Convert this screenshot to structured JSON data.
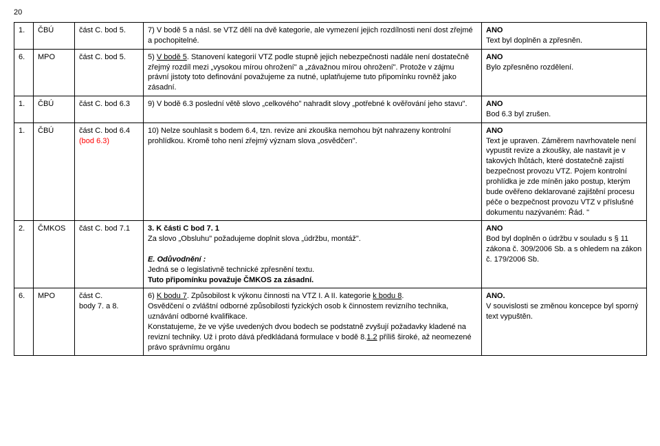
{
  "page_number": "20",
  "rows": [
    {
      "c1": "1.",
      "c2": "ČBÚ",
      "c3_parts": [
        {
          "text": "část C. bod 5."
        }
      ],
      "c4_parts": [
        {
          "text": "7) V bodě 5 a násl. se VTZ dělí na dvě kategorie, ale vymezení jejich rozdílnosti není dost zřejmé a pochopitelné."
        }
      ],
      "c5_parts": [
        {
          "text": "ANO",
          "bold": true
        },
        {
          "br": true
        },
        {
          "text": "Text byl doplněn a zpřesněn."
        }
      ]
    },
    {
      "c1": "6.",
      "c2": "MPO",
      "c3_parts": [
        {
          "text": "část C. bod 5."
        }
      ],
      "c4_parts": [
        {
          "text": "5) "
        },
        {
          "text": "V bodě 5",
          "underline": true
        },
        {
          "text": ". Stanovení kategorií VTZ podle stupně jejich nebezpečnosti nadále není dostatečně zřejmý rozdíl mezi „vysokou mírou ohrožení\" a „závažnou mírou ohrožení\". Protože v zájmu právní jistoty toto definování považujeme za nutné, uplatňujeme tuto připomínku rovněž jako zásadní."
        }
      ],
      "c5_parts": [
        {
          "text": "ANO",
          "bold": true
        },
        {
          "br": true
        },
        {
          "text": "Bylo zpřesněno rozdělení."
        }
      ]
    },
    {
      "c1": "1.",
      "c2": "ČBÚ",
      "c3_parts": [
        {
          "text": "část C. bod 6.3"
        }
      ],
      "c4_parts": [
        {
          "text": "9) V bodě 6.3 poslední větě slovo „celkového\" nahradit slovy „potřebné k ověřování jeho stavu\"."
        }
      ],
      "c5_parts": [
        {
          "text": "ANO",
          "bold": true
        },
        {
          "br": true
        },
        {
          "text": "Bod 6.3 byl zrušen."
        }
      ]
    },
    {
      "c1": "1.",
      "c2": "ČBÚ",
      "c3_parts": [
        {
          "text": "část C. bod 6.4 "
        },
        {
          "text": "(bod 6.3)",
          "red": true
        }
      ],
      "c4_parts": [
        {
          "text": "10) Nelze souhlasit s bodem 6.4, tzn. revize ani zkouška nemohou být nahrazeny kontrolní prohlídkou. Kromě toho není zřejmý význam slova „osvědčen\"."
        }
      ],
      "c5_parts": [
        {
          "text": "ANO",
          "bold": true
        },
        {
          "br": true
        },
        {
          "text": "Text je upraven. Záměrem navrhovatele není vypustit revize a zkoušky, ale nastavit je v takových lhůtách, které dostatečně zajistí bezpečnost provozu VTZ. Pojem kontrolní prohlídka je zde míněn jako postup, kterým bude ověřeno deklarované zajištění procesu péče o bezpečnost provozu VTZ v příslušné dokumentu nazývaném: Řád. \""
        }
      ]
    },
    {
      "c1": "2.",
      "c2": "ČMKOS",
      "c3_parts": [
        {
          "text": "část C. bod 7.1"
        }
      ],
      "c4_parts": [
        {
          "text": "3. K části C bod 7. 1",
          "bold": true
        },
        {
          "br": true
        },
        {
          "text": "Za slovo „Obsluhu\" požadujeme doplnit slova „údržbu, montáž\"."
        },
        {
          "br": true
        },
        {
          "br": true
        },
        {
          "text": "E. Odůvodnění :",
          "bold": true,
          "italic": true
        },
        {
          "br": true
        },
        {
          "text": "Jedná se o legislativně technické zpřesnění textu."
        },
        {
          "br": true
        },
        {
          "text": "Tuto připomínku považuje ČMKOS za zásadní.",
          "bold": true
        }
      ],
      "c5_parts": [
        {
          "text": "ANO",
          "bold": true
        },
        {
          "br": true
        },
        {
          "text": "Bod byl doplněn o údržbu v souladu s § 11 zákona č. 309/2006 Sb. a s ohledem na zákon č. 179/2006 Sb."
        }
      ]
    },
    {
      "c1": "6.",
      "c2": "MPO",
      "c3_parts": [
        {
          "text": "část C."
        },
        {
          "br": true
        },
        {
          "text": "body 7. a 8."
        }
      ],
      "c4_parts": [
        {
          "text": "6) "
        },
        {
          "text": "K bodu 7",
          "underline": true
        },
        {
          "text": ". Způsobilost k výkonu činnosti na VTZ I. A II. kategorie "
        },
        {
          "text": "k bodu 8",
          "underline": true
        },
        {
          "text": "."
        },
        {
          "br": true
        },
        {
          "text": "Osvědčení o zvláštní odborné způsobilosti fyzických osob k činnostem revizního technika, uznávání odborné kvalifikace."
        },
        {
          "br": true
        },
        {
          "text": "Konstatujeme, že ve výše uvedených dvou bodech se podstatně zvyšují požadavky kladené na revizní techniky. Už i proto dává předkládaná formulace v bodě 8."
        },
        {
          "text": "1.2",
          "underline": true
        },
        {
          "text": " příliš široké, až neomezené právo správnímu orgánu"
        }
      ],
      "c5_parts": [
        {
          "text": "ANO.",
          "bold": true
        },
        {
          "br": true
        },
        {
          "text": "V souvislosti se změnou koncepce byl sporný text vypuštěn."
        }
      ]
    }
  ]
}
